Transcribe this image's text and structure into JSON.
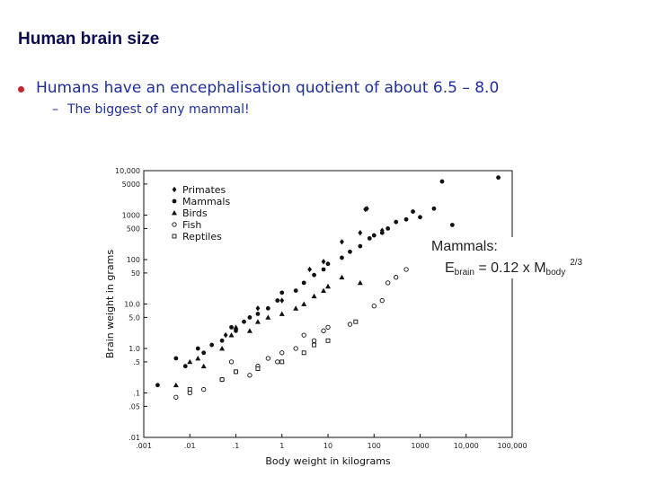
{
  "slide": {
    "title": "Human brain size",
    "bullet": "Humans have an encephalisation quotient of about 6.5 – 8.0",
    "sub_dash": "–",
    "sub_bullet": "The biggest of any mammal!"
  },
  "annotation": {
    "line1": "Mammals:",
    "e": "E",
    "e_sub": "brain",
    "eq": " = 0.12 x M",
    "m_sub": "body",
    "exp": "2/3"
  },
  "chart_data": {
    "type": "scatter",
    "xscale": "log",
    "yscale": "log",
    "xlabel": "Body weight in kilograms",
    "ylabel": "Brain weight in grams",
    "xlim": [
      0.001,
      100000
    ],
    "ylim": [
      0.01,
      10000
    ],
    "x_ticks": [
      ".001",
      ".01",
      ".1",
      "1",
      "10",
      "100",
      "1000",
      "10,000",
      "100,000"
    ],
    "y_ticks": [
      "10,000",
      "5000",
      "1000",
      "500",
      "100",
      "50",
      "10.0",
      "5.0",
      "1.0",
      ".5",
      ".1",
      ".05",
      ".01"
    ],
    "legend_position": "top-left",
    "series": [
      {
        "name": "Primates",
        "marker": "diamond",
        "points": [
          [
            0.06,
            2.0
          ],
          [
            0.3,
            8
          ],
          [
            1.0,
            12
          ],
          [
            4,
            60
          ],
          [
            8,
            90
          ],
          [
            20,
            250
          ],
          [
            50,
            400
          ],
          [
            65,
            1350
          ],
          [
            70,
            1400
          ],
          [
            150,
            450
          ]
        ]
      },
      {
        "name": "Mammals",
        "marker": "dot",
        "points": [
          [
            0.002,
            0.15
          ],
          [
            0.005,
            0.6
          ],
          [
            0.008,
            0.4
          ],
          [
            0.015,
            1.0
          ],
          [
            0.02,
            0.8
          ],
          [
            0.03,
            1.2
          ],
          [
            0.05,
            1.5
          ],
          [
            0.08,
            3
          ],
          [
            0.1,
            2.5
          ],
          [
            0.15,
            4
          ],
          [
            0.2,
            5
          ],
          [
            0.3,
            6
          ],
          [
            0.5,
            8
          ],
          [
            0.8,
            12
          ],
          [
            1.0,
            18
          ],
          [
            2,
            20
          ],
          [
            3,
            30
          ],
          [
            5,
            45
          ],
          [
            8,
            60
          ],
          [
            10,
            80
          ],
          [
            20,
            110
          ],
          [
            30,
            150
          ],
          [
            50,
            200
          ],
          [
            80,
            300
          ],
          [
            100,
            350
          ],
          [
            150,
            400
          ],
          [
            200,
            500
          ],
          [
            300,
            700
          ],
          [
            500,
            800
          ],
          [
            700,
            1200
          ],
          [
            1000,
            900
          ],
          [
            2000,
            1400
          ],
          [
            3000,
            5700
          ],
          [
            5000,
            600
          ],
          [
            50000,
            7000
          ]
        ]
      },
      {
        "name": "Birds",
        "marker": "triangle",
        "points": [
          [
            0.005,
            0.15
          ],
          [
            0.01,
            0.5
          ],
          [
            0.015,
            0.6
          ],
          [
            0.02,
            0.4
          ],
          [
            0.05,
            1.0
          ],
          [
            0.08,
            2
          ],
          [
            0.1,
            3
          ],
          [
            0.2,
            2.5
          ],
          [
            0.3,
            4
          ],
          [
            0.5,
            5
          ],
          [
            1.0,
            6
          ],
          [
            2,
            8
          ],
          [
            3,
            10
          ],
          [
            5,
            15
          ],
          [
            8,
            20
          ],
          [
            10,
            25
          ],
          [
            20,
            40
          ],
          [
            50,
            30
          ]
        ]
      },
      {
        "name": "Fish",
        "marker": "open-circle",
        "points": [
          [
            0.005,
            0.08
          ],
          [
            0.01,
            0.1
          ],
          [
            0.02,
            0.12
          ],
          [
            0.05,
            0.2
          ],
          [
            0.08,
            0.5
          ],
          [
            0.1,
            0.3
          ],
          [
            0.2,
            0.25
          ],
          [
            0.3,
            0.4
          ],
          [
            0.5,
            0.6
          ],
          [
            0.8,
            0.5
          ],
          [
            1,
            0.8
          ],
          [
            2,
            1.0
          ],
          [
            3,
            2.0
          ],
          [
            5,
            1.5
          ],
          [
            8,
            2.5
          ],
          [
            10,
            3
          ],
          [
            30,
            3.5
          ],
          [
            100,
            9
          ],
          [
            150,
            12
          ],
          [
            200,
            30
          ],
          [
            300,
            40
          ],
          [
            500,
            60
          ]
        ]
      },
      {
        "name": "Reptiles",
        "marker": "open-square",
        "points": [
          [
            0.01,
            0.12
          ],
          [
            0.05,
            0.2
          ],
          [
            0.1,
            0.3
          ],
          [
            0.3,
            0.35
          ],
          [
            1,
            0.5
          ],
          [
            3,
            0.8
          ],
          [
            5,
            1.2
          ],
          [
            10,
            1.5
          ],
          [
            40,
            4
          ]
        ]
      }
    ]
  }
}
